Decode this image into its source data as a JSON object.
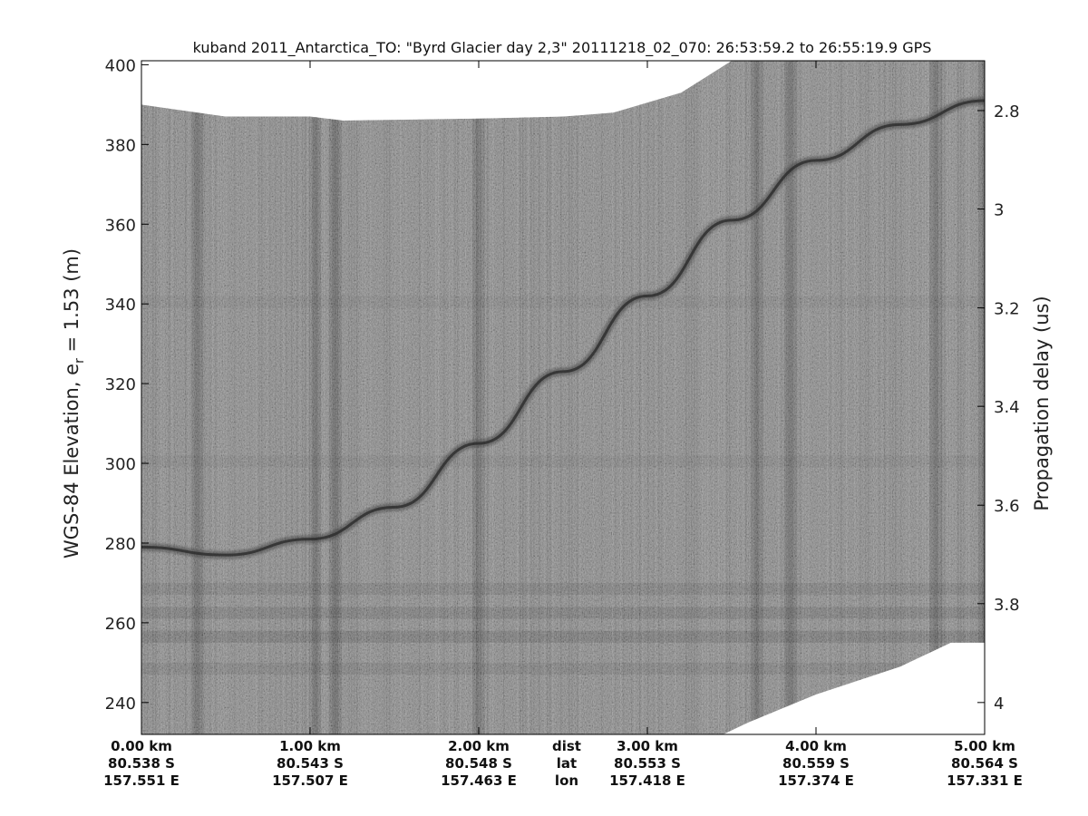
{
  "chart_data": {
    "type": "heatmap",
    "title": "kuband 2011_Antarctica_TO: \"Byrd Glacier day 2,3\"  20111218_02_070: 26:53:59.2 to 26:55:19.9 GPS",
    "ylabel_left_prefix": "WGS-84 Elevation, e",
    "ylabel_left_sub": "r",
    "ylabel_left_suffix": " = 1.53 (m)",
    "ylabel_right": "Propagation delay (us)",
    "xlim": [
      0,
      5
    ],
    "ylim": [
      232,
      401
    ],
    "y_ticks_left": [
      240,
      260,
      280,
      300,
      320,
      340,
      360,
      380,
      400
    ],
    "y_ticks_right": [
      {
        "label": "2.8",
        "elev": 388.5
      },
      {
        "label": "3",
        "elev": 363.8
      },
      {
        "label": "3.2",
        "elev": 339.0
      },
      {
        "label": "3.4",
        "elev": 314.3
      },
      {
        "label": "3.6",
        "elev": 289.5
      },
      {
        "label": "3.8",
        "elev": 264.8
      },
      {
        "label": "4",
        "elev": 240.0
      }
    ],
    "x_ticks": [
      {
        "x": 0.0,
        "dist": "0.00 km",
        "lat": "80.538 S",
        "lon": "157.551 E"
      },
      {
        "x": 1.0,
        "dist": "1.00 km",
        "lat": "80.543 S",
        "lon": "157.507 E"
      },
      {
        "x": 2.0,
        "dist": "2.00 km",
        "lat": "80.548 S",
        "lon": "157.463 E"
      },
      {
        "x": 3.0,
        "dist": "3.00 km",
        "lat": "80.553 S",
        "lon": "157.418 E"
      },
      {
        "x": 4.0,
        "dist": "4.00 km",
        "lat": "80.559 S",
        "lon": "157.374 E"
      },
      {
        "x": 5.0,
        "dist": "5.00 km",
        "lat": "80.564 S",
        "lon": "157.331 E"
      }
    ],
    "row_labels": {
      "x": 2.5,
      "dist": "dist",
      "lat": "lat",
      "lon": "lon"
    },
    "surface_layer": {
      "x": [
        0.0,
        0.5,
        1.0,
        1.5,
        2.0,
        2.5,
        3.0,
        3.5,
        4.0,
        4.5,
        5.0
      ],
      "elevation": [
        279,
        277,
        281,
        289,
        305,
        323,
        342,
        361,
        376,
        385,
        391
      ]
    },
    "data_top_boundary": {
      "x": [
        0.0,
        0.5,
        1.0,
        1.2,
        2.0,
        2.5,
        2.8,
        3.2,
        3.5,
        4.0,
        5.0
      ],
      "elevation": [
        390,
        387,
        387,
        386,
        386.5,
        387,
        388,
        393,
        401,
        401,
        401
      ]
    },
    "data_bottom_boundary": {
      "x": [
        0.0,
        3.45,
        3.6,
        4.0,
        4.5,
        4.8,
        5.0
      ],
      "elevation": [
        232,
        232,
        235,
        242,
        249,
        255,
        255
      ]
    },
    "dark_columns_km": [
      0.33,
      1.03,
      1.15,
      2.0,
      3.65,
      3.85,
      4.71,
      5.0
    ],
    "colormap": "grayscale",
    "colors": {
      "background": "#ffffff",
      "data_mid": "#8c8c8c",
      "layer": "#3a3a3a"
    }
  }
}
